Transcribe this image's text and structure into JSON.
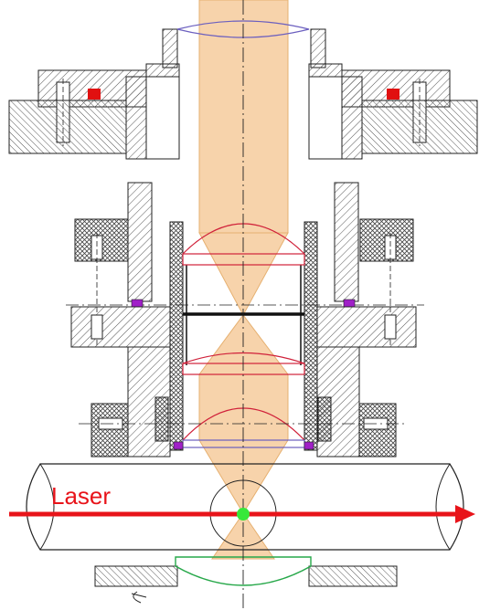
{
  "labels": {
    "laser": "Laser"
  },
  "colors": {
    "beam_fill": "#f7d3ab",
    "beam_edge": "#e6b070",
    "laser": "#e8141a",
    "lens_red": "#d0213a",
    "lens_blue": "#6b5fbf",
    "lens_green": "#27a84a",
    "focus_dot": "#38e83a",
    "seal_red": "#e11010",
    "seal_purple": "#a020c8",
    "hatch": "#555555",
    "line": "#222222"
  },
  "icons": {
    "laser_arrow": "arrow-right-icon"
  }
}
